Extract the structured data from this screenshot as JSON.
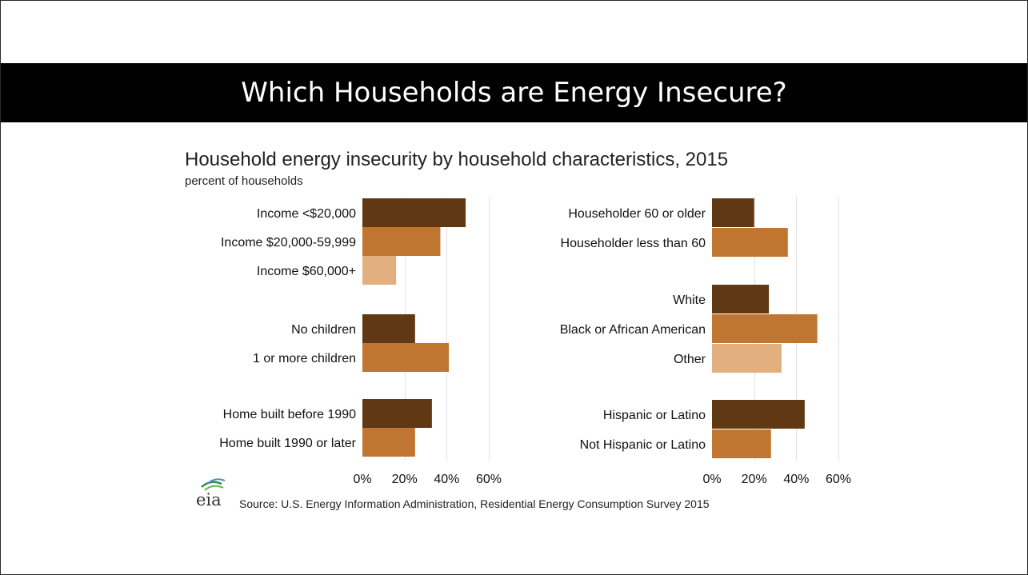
{
  "slide": {
    "title": "Which Households are Energy Insecure?"
  },
  "logo": {
    "text": "eia",
    "icon": "eia-logo-icon"
  },
  "source": "Source: U.S. Energy Information Administration, Residential Energy Consumption Survey 2015",
  "colors": {
    "dark": "#603813",
    "medium": "#c07530",
    "light": "#e2b07f",
    "grid": "#e0e0e0"
  },
  "chart_data": [
    {
      "type": "bar",
      "orientation": "horizontal",
      "title": "Household energy insecurity by household characteristics, 2015",
      "subtitle": "percent of households",
      "xlim": [
        0,
        60
      ],
      "ticks": [
        "0%",
        "20%",
        "40%",
        "60%"
      ],
      "tick_values": [
        0,
        20,
        40,
        60
      ],
      "grid": true,
      "groups": [
        {
          "categories": [
            "Income <$20,000",
            "Income $20,000-59,999",
            "Income $60,000+"
          ],
          "values": [
            49,
            37,
            16
          ],
          "shades": [
            "dark",
            "medium",
            "light"
          ]
        },
        {
          "categories": [
            "No children",
            "1 or more children"
          ],
          "values": [
            25,
            41
          ],
          "shades": [
            "dark",
            "medium"
          ]
        },
        {
          "categories": [
            "Home built before 1990",
            "Home built 1990 or later"
          ],
          "values": [
            33,
            25
          ],
          "shades": [
            "dark",
            "medium"
          ]
        }
      ]
    },
    {
      "type": "bar",
      "orientation": "horizontal",
      "xlim": [
        0,
        60
      ],
      "ticks": [
        "0%",
        "20%",
        "40%",
        "60%"
      ],
      "tick_values": [
        0,
        20,
        40,
        60
      ],
      "grid": true,
      "groups": [
        {
          "categories": [
            "Householder 60 or older",
            "Householder less than 60"
          ],
          "values": [
            20,
            36
          ],
          "shades": [
            "dark",
            "medium"
          ]
        },
        {
          "categories": [
            "White",
            "Black or African American",
            "Other"
          ],
          "values": [
            27,
            50,
            33
          ],
          "shades": [
            "dark",
            "medium",
            "light"
          ]
        },
        {
          "categories": [
            "Hispanic or Latino",
            "Not Hispanic or Latino"
          ],
          "values": [
            44,
            28
          ],
          "shades": [
            "dark",
            "medium"
          ]
        }
      ]
    }
  ]
}
